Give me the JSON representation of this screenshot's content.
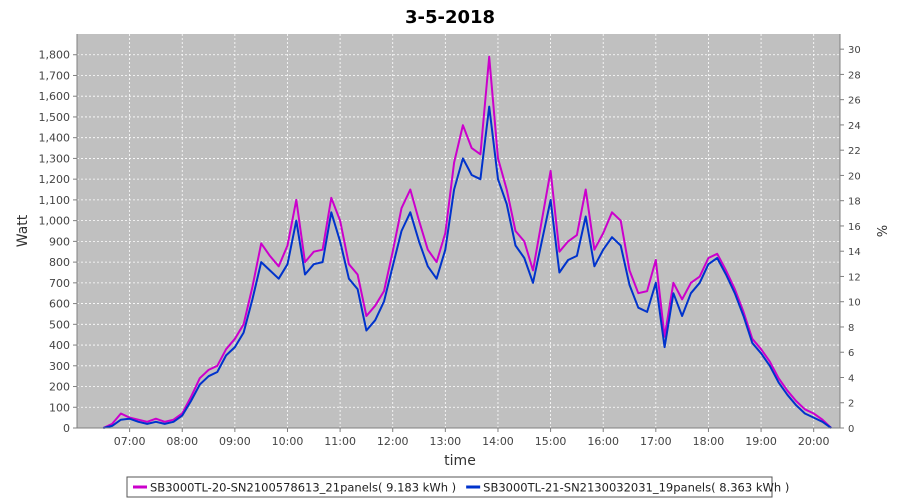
{
  "chart_data": {
    "type": "line",
    "title": "3-5-2018",
    "xlabel": "time",
    "ylabel": "Watt",
    "y2label": "%",
    "ylim": [
      0,
      1900
    ],
    "y2lim": [
      0,
      31.2
    ],
    "yticks": [
      0,
      100,
      200,
      300,
      400,
      500,
      600,
      700,
      800,
      900,
      1000,
      1100,
      1200,
      1300,
      1400,
      1500,
      1600,
      1700,
      1800
    ],
    "yticklabels": [
      "0",
      "100",
      "200",
      "300",
      "400",
      "500",
      "600",
      "700",
      "800",
      "900",
      "1,000",
      "1,100",
      "1,200",
      "1,300",
      "1,400",
      "1,500",
      "1,600",
      "1,700",
      "1,800"
    ],
    "y2ticks": [
      0,
      2,
      4,
      6,
      8,
      10,
      12,
      14,
      16,
      18,
      20,
      22,
      24,
      26,
      28,
      30
    ],
    "xlim": [
      "06:00",
      "20:30"
    ],
    "xticks": [
      "07:00",
      "08:00",
      "09:00",
      "10:00",
      "11:00",
      "12:00",
      "13:00",
      "14:00",
      "15:00",
      "16:00",
      "17:00",
      "18:00",
      "19:00",
      "20:00"
    ],
    "grid": true,
    "legend_position": "bottom",
    "series": [
      {
        "name": "SB3000TL-20-SN2100578613_21panels( 9.183 kWh )",
        "color": "#cc00cc",
        "points": [
          [
            "06:30",
            0
          ],
          [
            "06:40",
            20
          ],
          [
            "06:50",
            70
          ],
          [
            "07:00",
            50
          ],
          [
            "07:10",
            40
          ],
          [
            "07:20",
            30
          ],
          [
            "07:30",
            45
          ],
          [
            "07:40",
            30
          ],
          [
            "07:50",
            40
          ],
          [
            "08:00",
            70
          ],
          [
            "08:10",
            150
          ],
          [
            "08:20",
            240
          ],
          [
            "08:30",
            280
          ],
          [
            "08:40",
            300
          ],
          [
            "08:50",
            380
          ],
          [
            "09:00",
            430
          ],
          [
            "09:10",
            500
          ],
          [
            "09:20",
            680
          ],
          [
            "09:30",
            890
          ],
          [
            "09:40",
            830
          ],
          [
            "09:50",
            780
          ],
          [
            "10:00",
            880
          ],
          [
            "10:10",
            1100
          ],
          [
            "10:20",
            800
          ],
          [
            "10:30",
            850
          ],
          [
            "10:40",
            860
          ],
          [
            "10:50",
            1110
          ],
          [
            "11:00",
            1000
          ],
          [
            "11:10",
            790
          ],
          [
            "11:20",
            740
          ],
          [
            "11:30",
            540
          ],
          [
            "11:40",
            590
          ],
          [
            "11:50",
            660
          ],
          [
            "12:00",
            850
          ],
          [
            "12:10",
            1060
          ],
          [
            "12:20",
            1150
          ],
          [
            "12:30",
            1000
          ],
          [
            "12:40",
            860
          ],
          [
            "12:50",
            800
          ],
          [
            "13:00",
            940
          ],
          [
            "13:10",
            1280
          ],
          [
            "13:20",
            1460
          ],
          [
            "13:30",
            1350
          ],
          [
            "13:40",
            1320
          ],
          [
            "13:50",
            1790
          ],
          [
            "14:00",
            1300
          ],
          [
            "14:10",
            1150
          ],
          [
            "14:20",
            950
          ],
          [
            "14:30",
            900
          ],
          [
            "14:40",
            760
          ],
          [
            "14:50",
            1000
          ],
          [
            "15:00",
            1240
          ],
          [
            "15:10",
            850
          ],
          [
            "15:20",
            900
          ],
          [
            "15:30",
            930
          ],
          [
            "15:40",
            1150
          ],
          [
            "15:50",
            860
          ],
          [
            "16:00",
            940
          ],
          [
            "16:10",
            1040
          ],
          [
            "16:20",
            1000
          ],
          [
            "16:30",
            760
          ],
          [
            "16:40",
            650
          ],
          [
            "16:50",
            660
          ],
          [
            "17:00",
            810
          ],
          [
            "17:10",
            440
          ],
          [
            "17:20",
            700
          ],
          [
            "17:30",
            620
          ],
          [
            "17:40",
            700
          ],
          [
            "17:50",
            730
          ],
          [
            "18:00",
            820
          ],
          [
            "18:10",
            840
          ],
          [
            "18:20",
            760
          ],
          [
            "18:30",
            670
          ],
          [
            "18:40",
            560
          ],
          [
            "18:50",
            430
          ],
          [
            "19:00",
            380
          ],
          [
            "19:10",
            320
          ],
          [
            "19:20",
            240
          ],
          [
            "19:30",
            180
          ],
          [
            "19:40",
            130
          ],
          [
            "19:50",
            90
          ],
          [
            "20:00",
            70
          ],
          [
            "20:10",
            40
          ],
          [
            "20:20",
            0
          ]
        ]
      },
      {
        "name": "SB3000TL-21-SN2130032031_19panels( 8.363 kWh )",
        "color": "#0033cc",
        "points": [
          [
            "06:30",
            0
          ],
          [
            "06:40",
            10
          ],
          [
            "06:50",
            40
          ],
          [
            "07:00",
            45
          ],
          [
            "07:10",
            30
          ],
          [
            "07:20",
            20
          ],
          [
            "07:30",
            30
          ],
          [
            "07:40",
            20
          ],
          [
            "07:50",
            30
          ],
          [
            "08:00",
            60
          ],
          [
            "08:10",
            130
          ],
          [
            "08:20",
            210
          ],
          [
            "08:30",
            250
          ],
          [
            "08:40",
            270
          ],
          [
            "08:50",
            350
          ],
          [
            "09:00",
            390
          ],
          [
            "09:10",
            460
          ],
          [
            "09:20",
            620
          ],
          [
            "09:30",
            800
          ],
          [
            "09:40",
            760
          ],
          [
            "09:50",
            720
          ],
          [
            "10:00",
            790
          ],
          [
            "10:10",
            1000
          ],
          [
            "10:20",
            740
          ],
          [
            "10:30",
            790
          ],
          [
            "10:40",
            800
          ],
          [
            "10:50",
            1040
          ],
          [
            "11:00",
            900
          ],
          [
            "11:10",
            720
          ],
          [
            "11:20",
            670
          ],
          [
            "11:30",
            470
          ],
          [
            "11:40",
            520
          ],
          [
            "11:50",
            610
          ],
          [
            "12:00",
            780
          ],
          [
            "12:10",
            950
          ],
          [
            "12:20",
            1040
          ],
          [
            "12:30",
            900
          ],
          [
            "12:40",
            780
          ],
          [
            "12:50",
            720
          ],
          [
            "13:00",
            860
          ],
          [
            "13:10",
            1150
          ],
          [
            "13:20",
            1300
          ],
          [
            "13:30",
            1220
          ],
          [
            "13:40",
            1200
          ],
          [
            "13:50",
            1550
          ],
          [
            "14:00",
            1200
          ],
          [
            "14:10",
            1080
          ],
          [
            "14:20",
            880
          ],
          [
            "14:30",
            820
          ],
          [
            "14:40",
            700
          ],
          [
            "14:50",
            900
          ],
          [
            "15:00",
            1100
          ],
          [
            "15:10",
            750
          ],
          [
            "15:20",
            810
          ],
          [
            "15:30",
            830
          ],
          [
            "15:40",
            1020
          ],
          [
            "15:50",
            780
          ],
          [
            "16:00",
            860
          ],
          [
            "16:10",
            920
          ],
          [
            "16:20",
            880
          ],
          [
            "16:30",
            690
          ],
          [
            "16:40",
            580
          ],
          [
            "16:50",
            560
          ],
          [
            "17:00",
            700
          ],
          [
            "17:10",
            390
          ],
          [
            "17:20",
            650
          ],
          [
            "17:30",
            540
          ],
          [
            "17:40",
            650
          ],
          [
            "17:50",
            700
          ],
          [
            "18:00",
            790
          ],
          [
            "18:10",
            820
          ],
          [
            "18:20",
            740
          ],
          [
            "18:30",
            650
          ],
          [
            "18:40",
            540
          ],
          [
            "18:50",
            410
          ],
          [
            "19:00",
            360
          ],
          [
            "19:10",
            300
          ],
          [
            "19:20",
            220
          ],
          [
            "19:30",
            160
          ],
          [
            "19:40",
            110
          ],
          [
            "19:50",
            70
          ],
          [
            "20:00",
            50
          ],
          [
            "20:10",
            30
          ],
          [
            "20:20",
            0
          ]
        ]
      }
    ]
  },
  "colors": {
    "plot_background": "#c0c0c0",
    "grid": "#ffffff",
    "axis": "#808080"
  }
}
